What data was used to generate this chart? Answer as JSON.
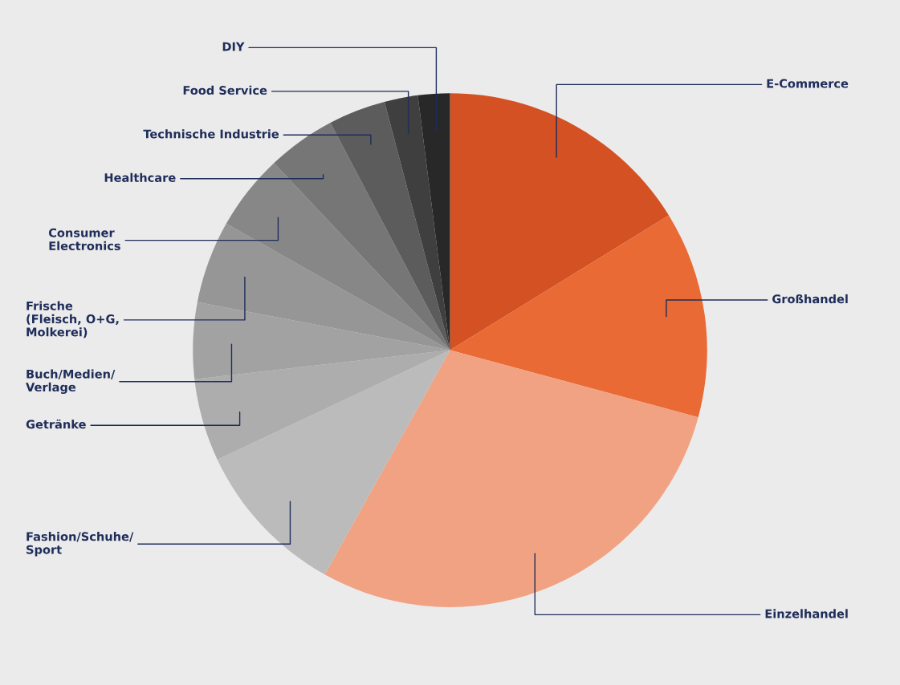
{
  "chart_data": {
    "type": "pie",
    "categories": [
      "E-Commerce",
      "Großhandel",
      "Einzelhandel",
      "Fashion/Schuhe/\nSport",
      "Getränke",
      "Buch/Medien/\nVerlage",
      "Frische\n(Fleisch, O+G,\nMolkerei)",
      "Consumer\nElectronics",
      "Healthcare",
      "Technische Industrie",
      "Food Service",
      "DIY"
    ],
    "values": [
      16.2,
      13.0,
      28.9,
      9.9,
      5.2,
      4.8,
      5.2,
      4.8,
      4.3,
      3.6,
      2.1,
      2.0
    ],
    "colors": [
      "#d35122",
      "#e96a34",
      "#f1a282",
      "#bbbbbb",
      "#adadad",
      "#a2a2a2",
      "#969696",
      "#878787",
      "#767676",
      "#5c5c5c",
      "#3f3f3f",
      "#282828"
    ],
    "legend": false
  }
}
